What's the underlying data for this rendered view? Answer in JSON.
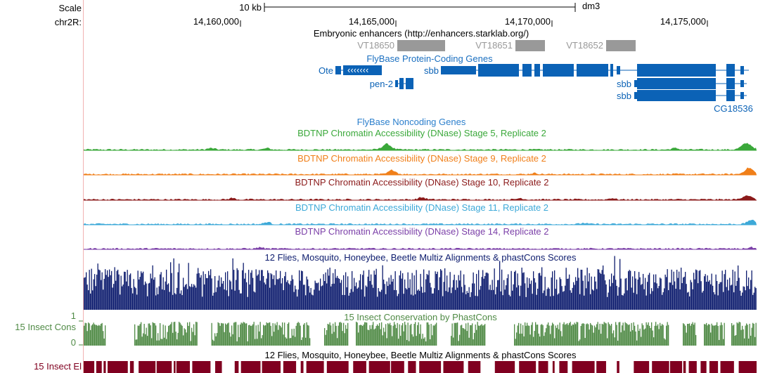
{
  "ruler": {
    "scale_label": "Scale",
    "chrom_label": "chr2R:",
    "scale_bar_text": "10 kb",
    "assembly": "dm3",
    "positions": [
      "14,160,000",
      "14,165,000",
      "14,170,000",
      "14,175,000"
    ]
  },
  "tracks": {
    "enhancers": {
      "title": "Embryonic enhancers (http://enhancers.starklab.org/)",
      "items": [
        "VT18650",
        "VT18651",
        "VT18652"
      ],
      "color": "#999999"
    },
    "flybase_coding": {
      "title": "FlyBase Protein-Coding Genes",
      "genes": [
        "Ote",
        "sbb",
        "pen-2",
        "sbb",
        "sbb",
        "CG18536"
      ],
      "color": "#0b62b6"
    },
    "flybase_noncoding": {
      "title": "FlyBase Noncoding Genes",
      "color": "#2b7fcc"
    },
    "dnase": [
      {
        "title": "BDTNP Chromatin Accessibility (DNase) Stage 5, Replicate 2",
        "color": "#3aa83a"
      },
      {
        "title": "BDTNP Chromatin Accessibility (DNase) Stage 9, Replicate 2",
        "color": "#f07f19"
      },
      {
        "title": "BDTNP Chromatin Accessibility (DNase) Stage 10, Replicate 2",
        "color": "#8b1a1a"
      },
      {
        "title": "BDTNP Chromatin Accessibility (DNase) Stage 11, Replicate 2",
        "color": "#3da9d8"
      },
      {
        "title": "BDTNP Chromatin Accessibility (DNase) Stage 14, Replicate 2",
        "color": "#7b3fa8"
      }
    ],
    "multiz_top": {
      "title": "12 Flies, Mosquito, Honeybee, Beetle Multiz Alignments & phastCons Scores",
      "color": "#0d1c6e"
    },
    "phastcons": {
      "title": "15 Insect Conservation by PhastCons",
      "side_label": "15 Insect Cons",
      "ymax": "1",
      "ymin": "0",
      "color": "#4f8a45"
    },
    "elements": {
      "title": "12 Flies, Mosquito, Honeybee, Beetle Multiz Alignments & phastCons Scores",
      "side_label": "15 Insect El",
      "color": "#800020"
    }
  }
}
